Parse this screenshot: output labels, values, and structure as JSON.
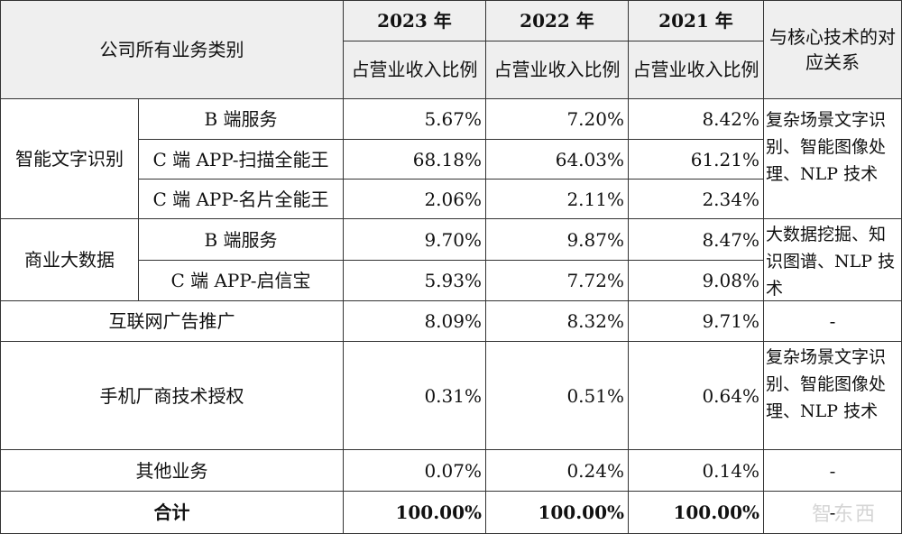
{
  "header": {
    "category": "公司所有业务类别",
    "year_2023": "2023 年",
    "year_2022": "2022 年",
    "year_2021": "2021 年",
    "metric": "占营业收入比例",
    "tech": "与核心技术的对应关系"
  },
  "groups": {
    "ocr": "智能文字识别",
    "bigdata": "商业大数据"
  },
  "rows": [
    {
      "name": "B 端服务",
      "v2023": "5.67%",
      "v2022": "7.20%",
      "v2021": "8.42%"
    },
    {
      "name": "C 端 APP-扫描全能王",
      "v2023": "68.18%",
      "v2022": "64.03%",
      "v2021": "61.21%"
    },
    {
      "name": "C 端 APP-名片全能王",
      "v2023": "2.06%",
      "v2022": "2.11%",
      "v2021": "2.34%"
    },
    {
      "name": "B 端服务",
      "v2023": "9.70%",
      "v2022": "9.87%",
      "v2021": "8.47%"
    },
    {
      "name": "C 端 APP-启信宝",
      "v2023": "5.93%",
      "v2022": "7.72%",
      "v2021": "9.08%"
    },
    {
      "name": "互联网广告推广",
      "v2023": "8.09%",
      "v2022": "8.32%",
      "v2021": "9.71%",
      "tech": "-"
    },
    {
      "name": "手机厂商技术授权",
      "v2023": "0.31%",
      "v2022": "0.51%",
      "v2021": "0.64%",
      "tech": "复杂场景文字识别、智能图像处理、NLP 技术"
    },
    {
      "name": "其他业务",
      "v2023": "0.07%",
      "v2022": "0.24%",
      "v2021": "0.14%",
      "tech": "-"
    },
    {
      "name": "合计",
      "v2023": "100.00%",
      "v2022": "100.00%",
      "v2021": "100.00%",
      "tech": "-"
    }
  ],
  "group_tech": {
    "ocr": "复杂场景文字识别、智能图像处理、NLP 技术",
    "bigdata": "大数据挖掘、知识图谱、NLP 技术"
  },
  "watermark": "智东西"
}
